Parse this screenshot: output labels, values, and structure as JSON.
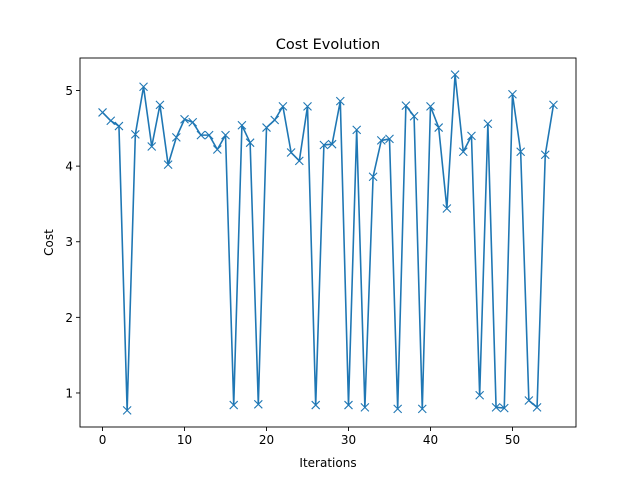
{
  "chart_data": {
    "type": "line",
    "title": "Cost Evolution",
    "xlabel": "Iterations",
    "ylabel": "Cost",
    "xlim": [
      -2.75,
      57.75
    ],
    "ylim": [
      0.55,
      5.43
    ],
    "xticks": [
      0,
      10,
      20,
      30,
      40,
      50
    ],
    "yticks": [
      1,
      2,
      3,
      4,
      5
    ],
    "grid": false,
    "line_color": "#1f77b4",
    "marker": "x",
    "x": [
      0,
      1,
      2,
      3,
      4,
      5,
      6,
      7,
      8,
      9,
      10,
      11,
      12,
      13,
      14,
      15,
      16,
      17,
      18,
      19,
      20,
      21,
      22,
      23,
      24,
      25,
      26,
      27,
      28,
      29,
      30,
      31,
      32,
      33,
      34,
      35,
      36,
      37,
      38,
      39,
      40,
      41,
      42,
      43,
      44,
      45,
      46,
      47,
      48,
      49,
      50,
      51,
      52,
      53,
      54,
      55
    ],
    "series": [
      {
        "values": [
          4.71,
          4.6,
          4.53,
          0.77,
          4.42,
          5.05,
          4.26,
          4.81,
          4.02,
          4.38,
          4.62,
          4.58,
          4.41,
          4.41,
          4.22,
          4.41,
          0.84,
          4.54,
          4.31,
          0.85,
          4.51,
          4.61,
          4.79,
          4.18,
          4.07,
          4.79,
          0.84,
          4.28,
          4.29,
          4.86,
          0.84,
          4.48,
          0.81,
          3.86,
          4.34,
          4.36,
          0.79,
          4.8,
          4.66,
          0.79,
          4.79,
          4.51,
          3.44,
          5.21,
          4.19,
          4.4,
          0.97,
          4.56,
          0.81,
          0.8,
          4.95,
          4.19,
          0.9,
          0.81,
          4.15,
          4.81
        ]
      }
    ]
  }
}
